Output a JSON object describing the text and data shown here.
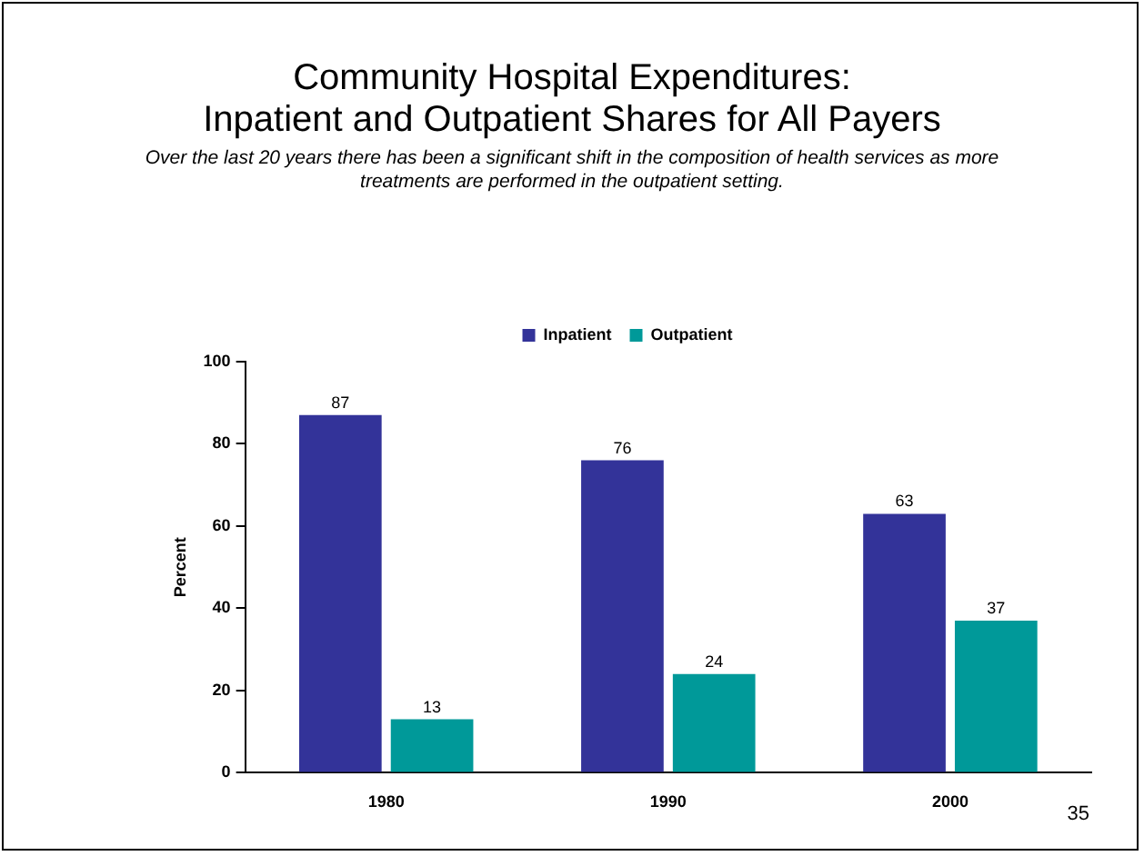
{
  "chart_data": {
    "type": "bar",
    "title": "Community Hospital Expenditures:\nInpatient and Outpatient Shares for All Payers",
    "subtitle": "Over the last 20 years there has been a significant shift in the composition of health services as more treatments are performed in the outpatient setting.",
    "ylabel": "Percent",
    "categories": [
      "1980",
      "1990",
      "2000"
    ],
    "series": [
      {
        "name": "Inpatient",
        "color": "#333399",
        "values": [
          87,
          76,
          63
        ]
      },
      {
        "name": "Outpatient",
        "color": "#009999",
        "values": [
          13,
          24,
          37
        ]
      }
    ],
    "ylim": [
      0,
      100
    ],
    "yticks": [
      0,
      20,
      40,
      60,
      80,
      100
    ],
    "grid": false,
    "legend": "top",
    "data_labels": true,
    "annotations": [
      "35"
    ]
  }
}
